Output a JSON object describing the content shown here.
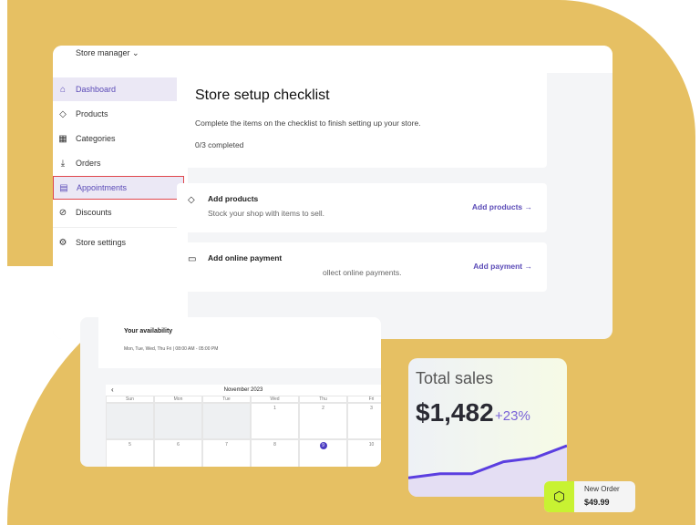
{
  "colors": {
    "background_shape": "#e6c063",
    "accent": "#5b4bb7",
    "highlight_border": "#e0474c",
    "order_icon_bg": "#c8f232"
  },
  "header": {
    "store_selector": "Store manager ⌄"
  },
  "sidebar": {
    "items": [
      {
        "label": "Dashboard",
        "icon": "home-icon"
      },
      {
        "label": "Products",
        "icon": "tag-icon"
      },
      {
        "label": "Categories",
        "icon": "grid-icon"
      },
      {
        "label": "Orders",
        "icon": "download-icon"
      },
      {
        "label": "Appointments",
        "icon": "calendar-icon"
      },
      {
        "label": "Discounts",
        "icon": "discount-icon"
      },
      {
        "label": "Store settings",
        "icon": "gear-icon"
      }
    ]
  },
  "checklist": {
    "title": "Store setup checklist",
    "description": "Complete the items on the checklist to finish setting up your store.",
    "progress": "0/3 completed",
    "items": [
      {
        "title": "Add products",
        "description": "Stock your shop with items to sell.",
        "action": "Add products →"
      },
      {
        "title": "Add online payment",
        "description": "ollect online payments.",
        "action": "Add payment →"
      }
    ]
  },
  "availability": {
    "title": "Your availability",
    "hours": "Mon, Tue, Wed, Thu Fri | 08:00 AM - 05:00 PM"
  },
  "calendar": {
    "month": "November 2023",
    "days": [
      "Sun",
      "Mon",
      "Tue",
      "Wed",
      "Thu",
      "Fri"
    ],
    "week1": [
      "",
      "",
      "",
      "1",
      "2",
      "3"
    ],
    "week2": [
      "5",
      "6",
      "7",
      "8",
      "9",
      "10"
    ],
    "today": "9"
  },
  "sales": {
    "title": "Total sales",
    "value": "$1,482",
    "change": "+23%",
    "trend": [
      2,
      3,
      3,
      6,
      7,
      10
    ]
  },
  "order": {
    "label": "New Order",
    "amount": "$49.99"
  }
}
